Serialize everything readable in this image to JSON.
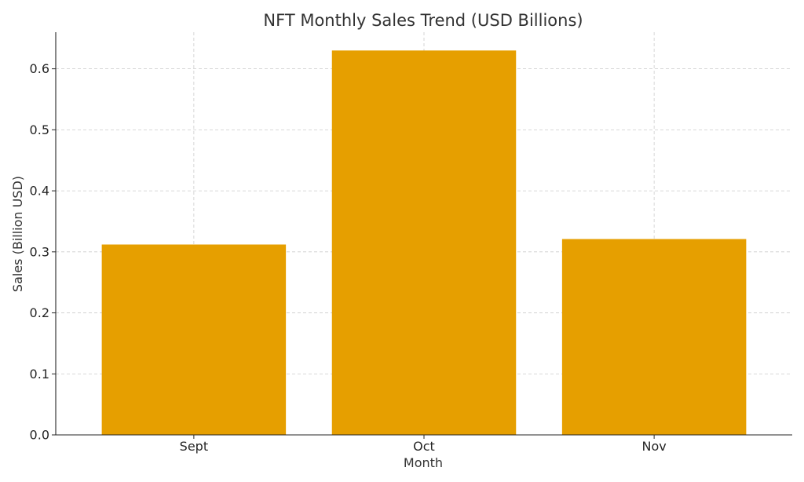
{
  "chart_data": {
    "type": "bar",
    "title": "NFT Monthly Sales Trend (USD Billions)",
    "xlabel": "Month",
    "ylabel": "Sales (Billion USD)",
    "categories": [
      "Sept",
      "Oct",
      "Nov"
    ],
    "values": [
      0.312,
      0.63,
      0.321
    ],
    "ylim": [
      0,
      0.66
    ],
    "yticks": [
      0.0,
      0.1,
      0.2,
      0.3,
      0.4,
      0.5,
      0.6
    ],
    "ytick_labels": [
      "0.0",
      "0.1",
      "0.2",
      "0.3",
      "0.4",
      "0.5",
      "0.6"
    ],
    "grid": true,
    "bar_color": "#E69F00"
  }
}
